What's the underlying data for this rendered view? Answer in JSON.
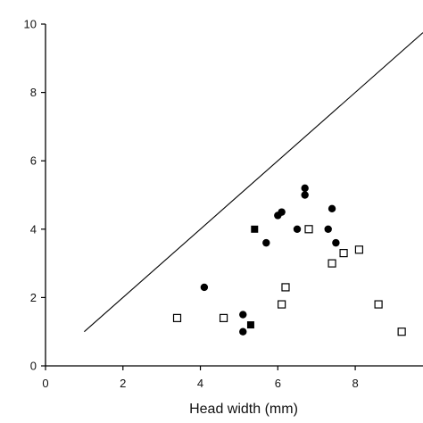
{
  "chart_data": {
    "type": "scatter",
    "title": "",
    "xlabel": "Head width (mm)",
    "ylabel": "",
    "xlim": [
      0,
      9.75
    ],
    "ylim": [
      0,
      10
    ],
    "x_ticks": [
      0,
      2,
      4,
      6,
      8
    ],
    "y_ticks": [
      0,
      2,
      4,
      6,
      8,
      10
    ],
    "grid": false,
    "legend": "none",
    "reference_line": {
      "x": [
        1.0,
        9.75
      ],
      "y": [
        1.0,
        9.75
      ]
    },
    "series": [
      {
        "marker": "filled-circle",
        "color": "#000000",
        "points": [
          [
            4.1,
            2.3
          ],
          [
            5.1,
            1.5
          ],
          [
            5.1,
            1.0
          ],
          [
            5.7,
            3.6
          ],
          [
            6.0,
            4.4
          ],
          [
            6.1,
            4.5
          ],
          [
            6.5,
            4.0
          ],
          [
            6.7,
            5.2
          ],
          [
            6.7,
            5.0
          ],
          [
            7.3,
            4.0
          ],
          [
            7.4,
            4.6
          ],
          [
            7.5,
            3.6
          ]
        ]
      },
      {
        "marker": "filled-square",
        "color": "#000000",
        "points": [
          [
            5.4,
            4.0
          ],
          [
            5.3,
            1.2
          ]
        ]
      },
      {
        "marker": "open-square",
        "color": "#000000",
        "points": [
          [
            3.4,
            1.4
          ],
          [
            4.6,
            1.4
          ],
          [
            6.1,
            1.8
          ],
          [
            6.2,
            2.3
          ],
          [
            6.8,
            4.0
          ],
          [
            7.4,
            3.0
          ],
          [
            7.7,
            3.3
          ],
          [
            8.1,
            3.4
          ],
          [
            8.6,
            1.8
          ],
          [
            9.2,
            1.0
          ]
        ]
      }
    ]
  }
}
